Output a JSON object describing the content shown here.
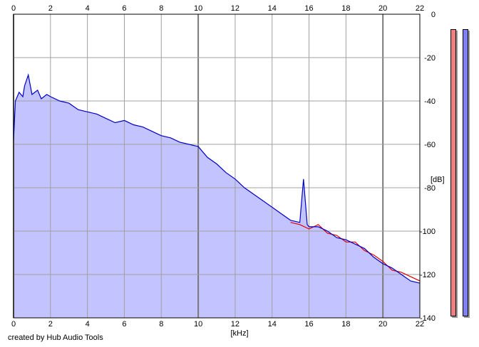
{
  "credit": "created by Hub Audio Tools",
  "chart_data": {
    "type": "area",
    "xlabel": "[kHz]",
    "ylabel": "[dB]",
    "xlim": [
      0,
      22
    ],
    "ylim": [
      -140,
      0
    ],
    "x_ticks": [
      0,
      2,
      4,
      6,
      8,
      10,
      12,
      14,
      16,
      18,
      20,
      22
    ],
    "y_ticks": [
      0,
      -20,
      -40,
      -60,
      -80,
      -100,
      -120,
      -140
    ],
    "grid": true,
    "fill_color": "#c3c3ff",
    "series": [
      {
        "color": "#0000c8",
        "x": [
          0,
          0.1,
          0.3,
          0.5,
          0.6,
          0.8,
          1.0,
          1.3,
          1.5,
          1.8,
          2.0,
          2.5,
          3.0,
          3.5,
          4.0,
          4.5,
          5.0,
          5.5,
          6.0,
          6.5,
          7.0,
          7.5,
          8.0,
          8.5,
          9.0,
          9.5,
          10.0,
          10.5,
          11.0,
          11.5,
          12.0,
          12.5,
          13.0,
          13.5,
          14.0,
          14.5,
          15.0,
          15.5,
          15.7,
          15.9,
          16.0,
          16.5,
          17.0,
          17.5,
          18.0,
          18.5,
          19.0,
          19.5,
          20.0,
          20.5,
          21.0,
          21.5,
          22.0
        ],
        "y": [
          -58,
          -40,
          -36,
          -38,
          -33,
          -28,
          -37,
          -35,
          -39,
          -37,
          -38,
          -40,
          -41,
          -44,
          -45,
          -46,
          -48,
          -50,
          -49,
          -51,
          -52,
          -54,
          -56,
          -57,
          -59,
          -60,
          -61,
          -66,
          -69,
          -73,
          -76,
          -80,
          -83,
          -86,
          -89,
          -92,
          -95,
          -96,
          -76,
          -97,
          -98,
          -98,
          -100,
          -103,
          -104,
          -106,
          -108,
          -112,
          -115,
          -117,
          -120,
          -123,
          -124
        ]
      },
      {
        "color": "#e00000",
        "x": [
          15.0,
          15.5,
          16.0,
          16.5,
          17.0,
          17.5,
          18.0,
          18.5,
          19.0,
          19.5,
          20.0,
          20.5,
          21.0,
          21.5,
          22.0
        ],
        "y": [
          -96,
          -97,
          -99,
          -97,
          -101,
          -102,
          -105,
          -105,
          -109,
          -111,
          -114,
          -118,
          -119,
          -121,
          -123
        ]
      }
    ],
    "meters": [
      {
        "color": "#f08080",
        "level": 1.0
      },
      {
        "color": "#8080f0",
        "level": 1.0
      }
    ]
  }
}
